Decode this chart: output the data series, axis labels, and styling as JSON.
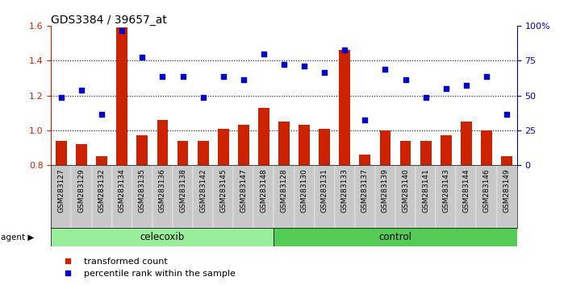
{
  "title": "GDS3384 / 39657_at",
  "samples": [
    "GSM283127",
    "GSM283129",
    "GSM283132",
    "GSM283134",
    "GSM283135",
    "GSM283136",
    "GSM283138",
    "GSM283142",
    "GSM283145",
    "GSM283147",
    "GSM283148",
    "GSM283128",
    "GSM283130",
    "GSM283131",
    "GSM283133",
    "GSM283137",
    "GSM283139",
    "GSM283140",
    "GSM283141",
    "GSM283143",
    "GSM283144",
    "GSM283146",
    "GSM283149"
  ],
  "bar_values": [
    0.94,
    0.92,
    0.85,
    1.59,
    0.97,
    1.06,
    0.94,
    0.94,
    1.01,
    1.03,
    1.13,
    1.05,
    1.03,
    1.01,
    1.46,
    0.86,
    1.0,
    0.94,
    0.94,
    0.97,
    1.05,
    1.0,
    0.85
  ],
  "scatter_values_left": [
    1.19,
    1.23,
    1.09,
    1.57,
    1.42,
    1.31,
    1.31,
    1.19,
    1.31,
    1.29,
    1.44,
    1.38,
    1.37,
    1.33,
    1.46,
    1.06,
    1.35,
    1.29,
    1.19,
    1.24,
    1.26,
    1.31,
    1.09
  ],
  "celecoxib_count": 11,
  "control_count": 12,
  "bar_color": "#cc2200",
  "scatter_color": "#0000cc",
  "celecoxib_color": "#99ee99",
  "control_color": "#55cc55",
  "ylim_left": [
    0.8,
    1.6
  ],
  "yticks_left": [
    0.8,
    1.0,
    1.2,
    1.4,
    1.6
  ],
  "ylim_right": [
    0.0,
    100.0
  ],
  "yticks_right": [
    0,
    25,
    50,
    75,
    100
  ],
  "ytick_labels_right": [
    "0",
    "25",
    "50",
    "75",
    "100%"
  ],
  "bar_width": 0.55,
  "xtick_bg": "#c8c8c8",
  "plot_bg": "#ffffff",
  "grid_lines": [
    1.0,
    1.2,
    1.4
  ]
}
